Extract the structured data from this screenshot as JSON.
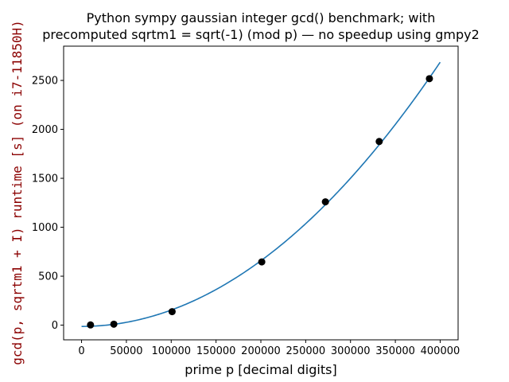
{
  "chart_data": {
    "type": "scatter",
    "title": "Python sympy gaussian integer gcd() benchmark; with",
    "subtitle": "precomputed sqrtm1 = sqrt(-1) (mod p) — no speedup using gmpy2",
    "xlabel": "prime p [decimal digits]",
    "ylabel": "gcd(p, sqrtm1 + I) runtime [s] (on i7-11850H)",
    "xlim": [
      -20000,
      420000
    ],
    "ylim": [
      -150,
      2850
    ],
    "x_ticks": [
      0,
      50000,
      100000,
      150000,
      200000,
      250000,
      300000,
      350000,
      400000
    ],
    "y_ticks": [
      0,
      500,
      1000,
      1500,
      2000,
      2500
    ],
    "grid": false,
    "series": [
      {
        "kind": "points",
        "color": "#000000",
        "x": [
          10000,
          36000,
          101000,
          201000,
          272000,
          332000,
          388000
        ],
        "y": [
          2,
          10,
          138,
          646,
          1260,
          1876,
          2518
        ]
      },
      {
        "kind": "fit-curve",
        "color": "#1f77b4",
        "formula": "y = -13 + 0.00000001667 * x^2 + 0.0000000000000005 * x^3",
        "x_range": [
          0,
          400000
        ]
      }
    ],
    "colors": {
      "ylabel": "#8b0000",
      "axes": "#000000",
      "curve": "#1f77b4",
      "points": "#000000"
    }
  }
}
